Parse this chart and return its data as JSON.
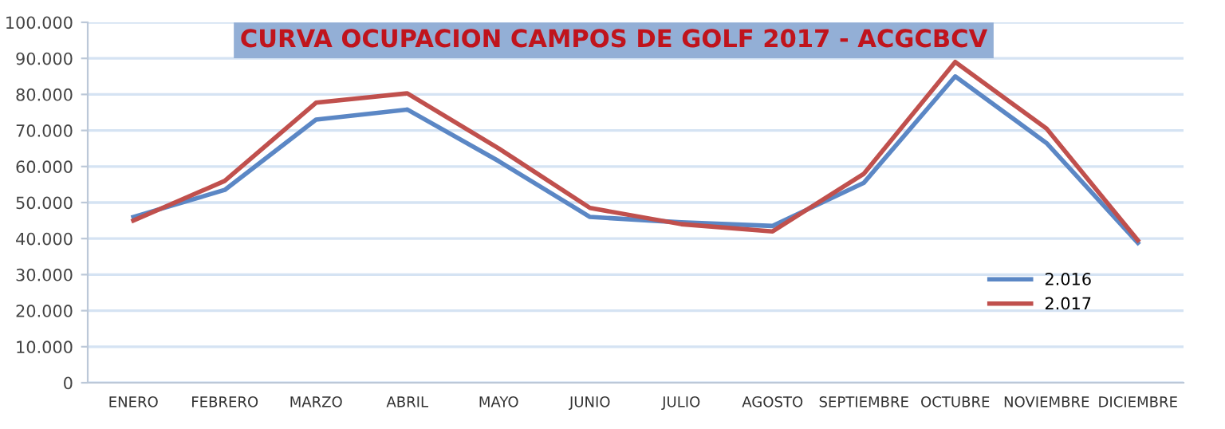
{
  "chart_data": {
    "type": "line",
    "title": "CURVA OCUPACION CAMPOS DE GOLF 2017 - ACGCBCV",
    "categories": [
      "ENERO",
      "FEBRERO",
      "MARZO",
      "ABRIL",
      "MAYO",
      "JUNIO",
      "JULIO",
      "AGOSTO",
      "SEPTIEMBRE",
      "OCTUBRE",
      "NOVIEMBRE",
      "DICIEMBRE"
    ],
    "series": [
      {
        "name": "2.016",
        "color": "#5b87c5",
        "values": [
          46000,
          53500,
          73000,
          75800,
          61500,
          46000,
          44500,
          43500,
          55500,
          85000,
          66500,
          38800
        ]
      },
      {
        "name": "2.017",
        "color": "#c0504d",
        "values": [
          45000,
          56000,
          77700,
          80300,
          65000,
          48500,
          44000,
          42000,
          58000,
          89000,
          70500,
          39500
        ]
      }
    ],
    "ylim": [
      0,
      100000
    ],
    "yticks": [
      {
        "value": 0,
        "label": "0"
      },
      {
        "value": 10000,
        "label": "10.000"
      },
      {
        "value": 20000,
        "label": "20.000"
      },
      {
        "value": 30000,
        "label": "30.000"
      },
      {
        "value": 40000,
        "label": "40.000"
      },
      {
        "value": 50000,
        "label": "50.000"
      },
      {
        "value": 60000,
        "label": "60.000"
      },
      {
        "value": 70000,
        "label": "70.000"
      },
      {
        "value": 80000,
        "label": "80.000"
      },
      {
        "value": 90000,
        "label": "90.000"
      },
      {
        "value": 100000,
        "label": "100.000"
      }
    ],
    "grid": "y",
    "legend": "right",
    "marker": "none",
    "line_style": "solid"
  }
}
